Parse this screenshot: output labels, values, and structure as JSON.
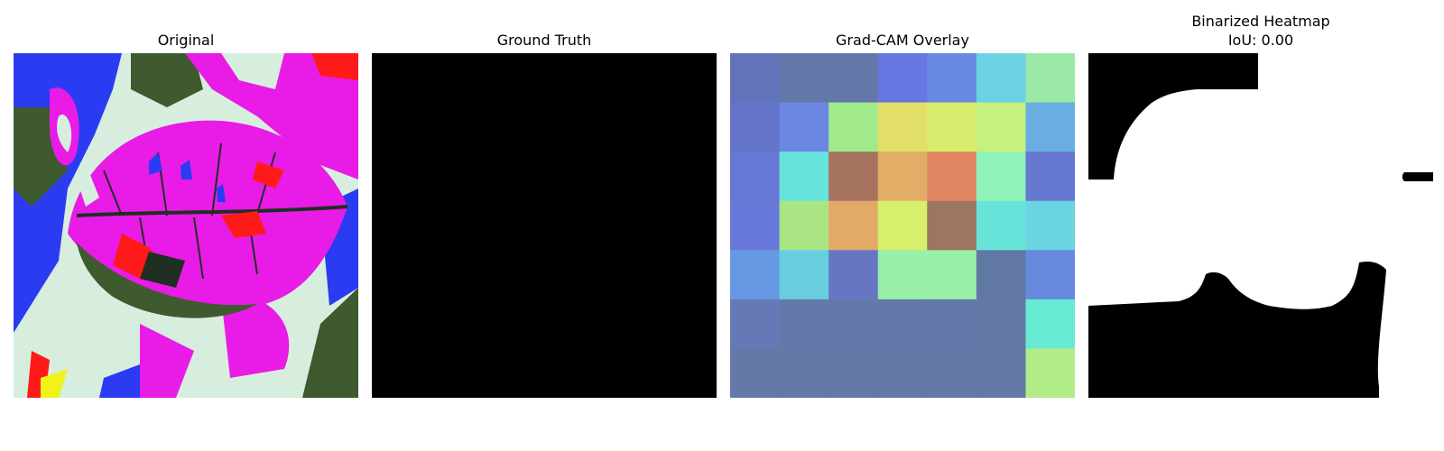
{
  "panels": {
    "original": {
      "title": "Original"
    },
    "ground_truth": {
      "title": "Ground Truth"
    },
    "gradcam": {
      "title": "Grad-CAM Overlay",
      "grid": [
        [
          "#6373b8",
          "#6377a9",
          "#6378a8",
          "#6776e0",
          "#6888e2",
          "#6ad2e2",
          "#9be9a6"
        ],
        [
          "#6474c9",
          "#6c87e1",
          "#a1ea8c",
          "#e2df69",
          "#d8ec6d",
          "#c6f07f",
          "#68aee1"
        ],
        [
          "#6677d6",
          "#66e3db",
          "#a6735f",
          "#e2ad67",
          "#e08660",
          "#8ff2b9",
          "#6677cf"
        ],
        [
          "#6778d9",
          "#a9e683",
          "#e2aa66",
          "#d6ef6c",
          "#9e7561",
          "#68e3da",
          "#69d5e0"
        ],
        [
          "#6699e1",
          "#69cde0",
          "#6676c3",
          "#97efa8",
          "#98efa6",
          "#6278a4",
          "#6789de"
        ],
        [
          "#6479b5",
          "#6479a9",
          "#6379a9",
          "#6378a8",
          "#6378a8",
          "#6279a5",
          "#68ebd2"
        ],
        [
          "#6379a8",
          "#6379a8",
          "#6379a8",
          "#6379a8",
          "#6379a8",
          "#6379a8",
          "#b1ec86"
        ]
      ]
    },
    "binarized": {
      "title_line1": "Binarized Heatmap",
      "title_line2": "IoU: 0.00"
    }
  },
  "colors": {
    "magenta": "#e81ce6",
    "blue": "#2b3bf2",
    "pale": "#d7eedf",
    "dark_green": "#3e5a2e",
    "red": "#ff1a1a",
    "vein": "#1f2f22"
  }
}
